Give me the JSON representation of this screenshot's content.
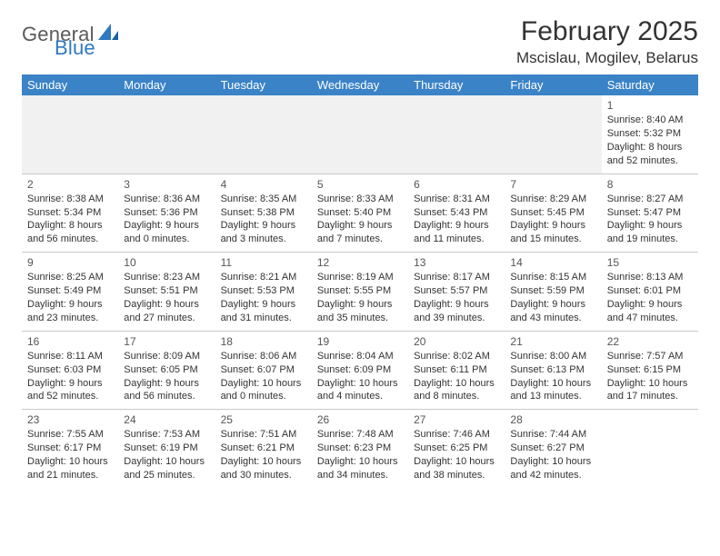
{
  "logo": {
    "text1": "General",
    "text2": "Blue",
    "color1": "#5a5a5a",
    "color2": "#2f78c2"
  },
  "title": "February 2025",
  "subtitle": "Mscislau, Mogilev, Belarus",
  "header_bg": "#3b83c7",
  "header_fg": "#ffffff",
  "columns": [
    "Sunday",
    "Monday",
    "Tuesday",
    "Wednesday",
    "Thursday",
    "Friday",
    "Saturday"
  ],
  "weeks": [
    [
      null,
      null,
      null,
      null,
      null,
      null,
      {
        "n": "1",
        "sunrise": "8:40 AM",
        "sunset": "5:32 PM",
        "day_h": "8",
        "day_m": "52"
      }
    ],
    [
      {
        "n": "2",
        "sunrise": "8:38 AM",
        "sunset": "5:34 PM",
        "day_h": "8",
        "day_m": "56"
      },
      {
        "n": "3",
        "sunrise": "8:36 AM",
        "sunset": "5:36 PM",
        "day_h": "9",
        "day_m": "0"
      },
      {
        "n": "4",
        "sunrise": "8:35 AM",
        "sunset": "5:38 PM",
        "day_h": "9",
        "day_m": "3"
      },
      {
        "n": "5",
        "sunrise": "8:33 AM",
        "sunset": "5:40 PM",
        "day_h": "9",
        "day_m": "7"
      },
      {
        "n": "6",
        "sunrise": "8:31 AM",
        "sunset": "5:43 PM",
        "day_h": "9",
        "day_m": "11"
      },
      {
        "n": "7",
        "sunrise": "8:29 AM",
        "sunset": "5:45 PM",
        "day_h": "9",
        "day_m": "15"
      },
      {
        "n": "8",
        "sunrise": "8:27 AM",
        "sunset": "5:47 PM",
        "day_h": "9",
        "day_m": "19"
      }
    ],
    [
      {
        "n": "9",
        "sunrise": "8:25 AM",
        "sunset": "5:49 PM",
        "day_h": "9",
        "day_m": "23"
      },
      {
        "n": "10",
        "sunrise": "8:23 AM",
        "sunset": "5:51 PM",
        "day_h": "9",
        "day_m": "27"
      },
      {
        "n": "11",
        "sunrise": "8:21 AM",
        "sunset": "5:53 PM",
        "day_h": "9",
        "day_m": "31"
      },
      {
        "n": "12",
        "sunrise": "8:19 AM",
        "sunset": "5:55 PM",
        "day_h": "9",
        "day_m": "35"
      },
      {
        "n": "13",
        "sunrise": "8:17 AM",
        "sunset": "5:57 PM",
        "day_h": "9",
        "day_m": "39"
      },
      {
        "n": "14",
        "sunrise": "8:15 AM",
        "sunset": "5:59 PM",
        "day_h": "9",
        "day_m": "43"
      },
      {
        "n": "15",
        "sunrise": "8:13 AM",
        "sunset": "6:01 PM",
        "day_h": "9",
        "day_m": "47"
      }
    ],
    [
      {
        "n": "16",
        "sunrise": "8:11 AM",
        "sunset": "6:03 PM",
        "day_h": "9",
        "day_m": "52"
      },
      {
        "n": "17",
        "sunrise": "8:09 AM",
        "sunset": "6:05 PM",
        "day_h": "9",
        "day_m": "56"
      },
      {
        "n": "18",
        "sunrise": "8:06 AM",
        "sunset": "6:07 PM",
        "day_h": "10",
        "day_m": "0"
      },
      {
        "n": "19",
        "sunrise": "8:04 AM",
        "sunset": "6:09 PM",
        "day_h": "10",
        "day_m": "4"
      },
      {
        "n": "20",
        "sunrise": "8:02 AM",
        "sunset": "6:11 PM",
        "day_h": "10",
        "day_m": "8"
      },
      {
        "n": "21",
        "sunrise": "8:00 AM",
        "sunset": "6:13 PM",
        "day_h": "10",
        "day_m": "13"
      },
      {
        "n": "22",
        "sunrise": "7:57 AM",
        "sunset": "6:15 PM",
        "day_h": "10",
        "day_m": "17"
      }
    ],
    [
      {
        "n": "23",
        "sunrise": "7:55 AM",
        "sunset": "6:17 PM",
        "day_h": "10",
        "day_m": "21"
      },
      {
        "n": "24",
        "sunrise": "7:53 AM",
        "sunset": "6:19 PM",
        "day_h": "10",
        "day_m": "25"
      },
      {
        "n": "25",
        "sunrise": "7:51 AM",
        "sunset": "6:21 PM",
        "day_h": "10",
        "day_m": "30"
      },
      {
        "n": "26",
        "sunrise": "7:48 AM",
        "sunset": "6:23 PM",
        "day_h": "10",
        "day_m": "34"
      },
      {
        "n": "27",
        "sunrise": "7:46 AM",
        "sunset": "6:25 PM",
        "day_h": "10",
        "day_m": "38"
      },
      {
        "n": "28",
        "sunrise": "7:44 AM",
        "sunset": "6:27 PM",
        "day_h": "10",
        "day_m": "42"
      },
      null
    ]
  ],
  "labels": {
    "sunrise": "Sunrise:",
    "sunset": "Sunset:",
    "daylight": "Daylight:",
    "hours": "hours",
    "and": "and",
    "minutes": "minutes."
  }
}
